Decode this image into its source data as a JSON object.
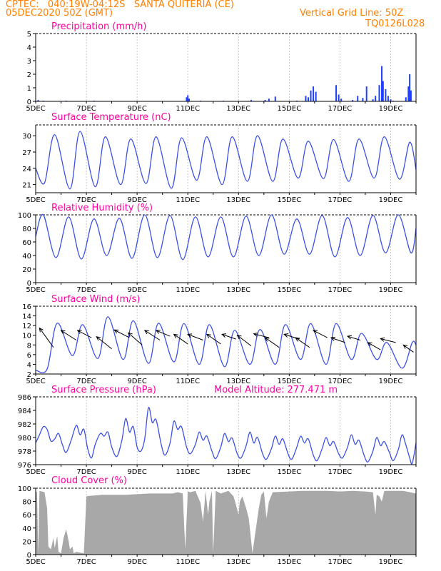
{
  "header": {
    "line1": "CPTEC:   040:19W-04:12S   SANTA QUITERIA (CE)",
    "line2": "05DEC2020 50Z (GMT)",
    "right1": "Vertical Grid Line: 50Z",
    "right2": "TQ0126L028"
  },
  "colors": {
    "header": "#ff7f00",
    "title": "#ff00a0",
    "line": "#3c50e6",
    "bars_precip": "#1f3fff",
    "cloud_fill": "#a8a8a8",
    "arrow": "#000000"
  },
  "x_axis": {
    "ticks": [
      "5DEC",
      "7DEC",
      "9DEC",
      "11DEC",
      "13DEC",
      "15DEC",
      "17DEC",
      "19DEC"
    ],
    "start_day": 5,
    "end_day": 20
  },
  "chart_data": [
    {
      "id": "precip",
      "type": "bar",
      "title": "Precipitation (mm/h)",
      "ylim": [
        0,
        5
      ],
      "yticks": [
        0,
        1,
        2,
        3,
        4,
        5
      ],
      "x": [
        5.1,
        5.3,
        6.2,
        7.3,
        10.95,
        11.0,
        11.05,
        11.5,
        12.4,
        13.5,
        14.05,
        14.2,
        14.45,
        15.3,
        15.65,
        15.75,
        15.85,
        15.95,
        16.05,
        16.85,
        16.95,
        17.05,
        17.5,
        17.7,
        17.9,
        18.05,
        18.3,
        18.4,
        18.55,
        18.65,
        18.7,
        18.8,
        18.9,
        19.0,
        19.1,
        19.6,
        19.7,
        19.75,
        19.8
      ],
      "values": [
        0.1,
        0.05,
        0.05,
        0.05,
        0.3,
        0.45,
        0.2,
        0.05,
        0.05,
        0.1,
        0.1,
        0.2,
        0.35,
        0.05,
        0.4,
        0.3,
        0.8,
        1.1,
        0.7,
        1.2,
        0.5,
        0.2,
        0.1,
        0.4,
        0.25,
        1.1,
        0.15,
        0.4,
        1.2,
        2.6,
        1.5,
        0.9,
        0.4,
        0.15,
        0.05,
        0.3,
        1.1,
        2.0,
        0.8
      ]
    },
    {
      "id": "temp",
      "type": "line",
      "title": "Surface Temperature (nC)",
      "ylim": [
        19.5,
        32
      ],
      "yticks": [
        21,
        24,
        27,
        30
      ],
      "maxima": [
        30.2,
        30.8,
        29.8,
        29.4,
        29.8,
        29.6,
        29.8,
        29.8,
        30.0,
        29.4,
        29.0,
        29.3,
        29.4,
        29.8,
        28.8
      ],
      "minima": [
        21.3,
        20.2,
        20.6,
        21.0,
        21.2,
        20.3,
        21.8,
        21.0,
        21.6,
        21.6,
        22.2,
        22.1,
        21.6,
        22.2,
        22.0
      ],
      "start": 24.0,
      "end": 23.8
    },
    {
      "id": "rh",
      "type": "line",
      "title": "Relative Humidity (%)",
      "ylim": [
        0,
        100
      ],
      "yticks": [
        0,
        20,
        40,
        60,
        80,
        100
      ],
      "maxima": [
        100,
        97,
        94,
        95,
        100,
        99,
        97,
        97,
        98,
        100,
        94,
        99,
        96,
        99,
        100
      ],
      "minima": [
        37,
        35,
        40,
        36,
        37,
        34,
        38,
        38,
        40,
        42,
        42,
        38,
        40,
        44,
        44
      ],
      "start": 68,
      "end": 80
    },
    {
      "id": "wind",
      "type": "line",
      "title": "Surface Wind (m/s)",
      "ylim": [
        2,
        16
      ],
      "yticks": [
        2,
        4,
        6,
        8,
        10,
        12,
        14,
        16
      ],
      "maxima": [
        12.5,
        12.2,
        13.8,
        13.0,
        12.5,
        12.4,
        12.2,
        11.0,
        11.2,
        12.2,
        12.4,
        12.4,
        10.4,
        8.5,
        8.5
      ],
      "minima": [
        3.0,
        5.8,
        5.2,
        5.0,
        4.2,
        4.5,
        4.0,
        3.5,
        4.0,
        4.0,
        5.0,
        4.0,
        5.0,
        5.0,
        3.2
      ],
      "start": 2.8,
      "end": 8.0,
      "arrows": [
        {
          "x": 5.7,
          "y": 7.5,
          "dx": -0.55,
          "dy": 4.0
        },
        {
          "x": 6.6,
          "y": 9.0,
          "dx": -0.6,
          "dy": 2.0
        },
        {
          "x": 7.2,
          "y": 9.5,
          "dx": -0.55,
          "dy": 1.5
        },
        {
          "x": 8.0,
          "y": 7.2,
          "dx": -0.6,
          "dy": 2.5
        },
        {
          "x": 8.7,
          "y": 9.5,
          "dx": -0.6,
          "dy": 1.6
        },
        {
          "x": 9.2,
          "y": 8.0,
          "dx": -0.55,
          "dy": 2.5
        },
        {
          "x": 9.9,
          "y": 9.0,
          "dx": -0.6,
          "dy": 2.0
        },
        {
          "x": 10.3,
          "y": 9.8,
          "dx": -0.55,
          "dy": 1.2
        },
        {
          "x": 11.0,
          "y": 8.2,
          "dx": -0.55,
          "dy": 2.0
        },
        {
          "x": 11.6,
          "y": 9.0,
          "dx": -0.6,
          "dy": 1.2
        },
        {
          "x": 12.3,
          "y": 8.2,
          "dx": -0.55,
          "dy": 2.0
        },
        {
          "x": 12.9,
          "y": 9.2,
          "dx": -0.55,
          "dy": 1.0
        },
        {
          "x": 13.5,
          "y": 7.8,
          "dx": -0.55,
          "dy": 2.2
        },
        {
          "x": 14.2,
          "y": 9.5,
          "dx": -0.6,
          "dy": 0.8
        },
        {
          "x": 14.6,
          "y": 7.5,
          "dx": -0.55,
          "dy": 2.0
        },
        {
          "x": 15.4,
          "y": 9.2,
          "dx": -0.6,
          "dy": 1.0
        },
        {
          "x": 15.8,
          "y": 7.5,
          "dx": -0.55,
          "dy": 2.0
        },
        {
          "x": 16.5,
          "y": 9.5,
          "dx": -0.55,
          "dy": 1.5
        },
        {
          "x": 17.2,
          "y": 8.5,
          "dx": -0.55,
          "dy": 1.0
        },
        {
          "x": 17.8,
          "y": 9.0,
          "dx": -0.5,
          "dy": 0.8
        },
        {
          "x": 18.6,
          "y": 7.0,
          "dx": -0.5,
          "dy": 1.5
        },
        {
          "x": 19.2,
          "y": 8.5,
          "dx": -0.6,
          "dy": 0.8
        },
        {
          "x": 19.9,
          "y": 6.5,
          "dx": -0.4,
          "dy": 1.5
        }
      ]
    },
    {
      "id": "pres",
      "type": "line",
      "title": "Surface Pressure (hPa)",
      "annotation": "Model Altitude: 277.471  m",
      "ylim": [
        976,
        986
      ],
      "yticks": [
        976,
        978,
        980,
        982,
        984,
        986
      ],
      "points": [
        [
          5.0,
          979.2
        ],
        [
          5.15,
          980.4
        ],
        [
          5.3,
          981.6
        ],
        [
          5.45,
          981.2
        ],
        [
          5.6,
          979.5
        ],
        [
          5.75,
          979.8
        ],
        [
          5.9,
          980.6
        ],
        [
          6.05,
          979.0
        ],
        [
          6.2,
          977.8
        ],
        [
          6.4,
          979.6
        ],
        [
          6.6,
          981.8
        ],
        [
          6.75,
          980.4
        ],
        [
          6.9,
          981.2
        ],
        [
          7.05,
          978.4
        ],
        [
          7.2,
          977.0
        ],
        [
          7.35,
          979.0
        ],
        [
          7.55,
          980.6
        ],
        [
          7.7,
          980.2
        ],
        [
          7.85,
          980.8
        ],
        [
          8.0,
          978.6
        ],
        [
          8.2,
          977.2
        ],
        [
          8.4,
          979.6
        ],
        [
          8.55,
          982.8
        ],
        [
          8.7,
          980.8
        ],
        [
          8.85,
          981.6
        ],
        [
          9.0,
          978.6
        ],
        [
          9.15,
          978.0
        ],
        [
          9.3,
          979.8
        ],
        [
          9.45,
          984.4
        ],
        [
          9.6,
          982.2
        ],
        [
          9.75,
          982.6
        ],
        [
          9.95,
          979.0
        ],
        [
          10.1,
          977.4
        ],
        [
          10.3,
          979.2
        ],
        [
          10.45,
          982.4
        ],
        [
          10.6,
          981.2
        ],
        [
          10.75,
          981.6
        ],
        [
          10.95,
          978.6
        ],
        [
          11.1,
          977.6
        ],
        [
          11.3,
          979.0
        ],
        [
          11.45,
          980.8
        ],
        [
          11.6,
          979.6
        ],
        [
          11.75,
          980.2
        ],
        [
          11.95,
          978.0
        ],
        [
          12.1,
          976.9
        ],
        [
          12.3,
          978.6
        ],
        [
          12.45,
          980.6
        ],
        [
          12.6,
          979.4
        ],
        [
          12.75,
          979.9
        ],
        [
          12.95,
          977.6
        ],
        [
          13.1,
          977.0
        ],
        [
          13.3,
          978.8
        ],
        [
          13.45,
          980.8
        ],
        [
          13.6,
          979.2
        ],
        [
          13.75,
          980.0
        ],
        [
          13.95,
          977.6
        ],
        [
          14.1,
          976.8
        ],
        [
          14.3,
          978.4
        ],
        [
          14.45,
          980.2
        ],
        [
          14.6,
          979.0
        ],
        [
          14.75,
          979.8
        ],
        [
          14.95,
          977.6
        ],
        [
          15.1,
          976.8
        ],
        [
          15.3,
          978.6
        ],
        [
          15.45,
          980.2
        ],
        [
          15.6,
          979.2
        ],
        [
          15.75,
          979.8
        ],
        [
          15.95,
          977.4
        ],
        [
          16.1,
          976.6
        ],
        [
          16.3,
          978.4
        ],
        [
          16.45,
          980.0
        ],
        [
          16.6,
          978.8
        ],
        [
          16.75,
          979.4
        ],
        [
          16.95,
          977.6
        ],
        [
          17.1,
          977.0
        ],
        [
          17.3,
          978.6
        ],
        [
          17.45,
          980.4
        ],
        [
          17.6,
          979.0
        ],
        [
          17.75,
          979.6
        ],
        [
          17.95,
          977.4
        ],
        [
          18.1,
          976.4
        ],
        [
          18.3,
          978.0
        ],
        [
          18.45,
          980.0
        ],
        [
          18.6,
          978.8
        ],
        [
          18.75,
          979.4
        ],
        [
          18.95,
          977.8
        ],
        [
          19.1,
          976.6
        ],
        [
          19.3,
          978.2
        ],
        [
          19.45,
          980.4
        ],
        [
          19.6,
          978.9
        ],
        [
          19.75,
          977.0
        ],
        [
          19.85,
          976.2
        ],
        [
          20.0,
          979.2
        ]
      ]
    },
    {
      "id": "cloud",
      "type": "area",
      "title": "Cloud Cover (%)",
      "ylim": [
        0,
        100
      ],
      "yticks": [
        0,
        20,
        40,
        60,
        80,
        100
      ],
      "points": [
        [
          5.0,
          96
        ],
        [
          5.05,
          94
        ],
        [
          5.1,
          2
        ],
        [
          5.15,
          96
        ],
        [
          5.35,
          94
        ],
        [
          5.45,
          70
        ],
        [
          5.5,
          12
        ],
        [
          5.6,
          8
        ],
        [
          5.7,
          25
        ],
        [
          5.75,
          10
        ],
        [
          5.85,
          28
        ],
        [
          5.9,
          4
        ],
        [
          6.0,
          2
        ],
        [
          6.1,
          25
        ],
        [
          6.2,
          38
        ],
        [
          6.25,
          30
        ],
        [
          6.3,
          20
        ],
        [
          6.35,
          8
        ],
        [
          6.45,
          12
        ],
        [
          6.5,
          2
        ],
        [
          6.6,
          4
        ],
        [
          6.75,
          3
        ],
        [
          6.9,
          2
        ],
        [
          7.0,
          88
        ],
        [
          7.3,
          89
        ],
        [
          7.6,
          90
        ],
        [
          8.0,
          90
        ],
        [
          8.5,
          90
        ],
        [
          9.0,
          91
        ],
        [
          9.5,
          92
        ],
        [
          10.0,
          92
        ],
        [
          10.4,
          92
        ],
        [
          10.6,
          94
        ],
        [
          10.8,
          92
        ],
        [
          10.9,
          8
        ],
        [
          11.0,
          95
        ],
        [
          11.1,
          94
        ],
        [
          11.3,
          96
        ],
        [
          11.5,
          78
        ],
        [
          11.6,
          50
        ],
        [
          11.7,
          96
        ],
        [
          11.8,
          60
        ],
        [
          11.85,
          80
        ],
        [
          11.95,
          96
        ],
        [
          12.0,
          2
        ],
        [
          12.1,
          96
        ],
        [
          12.3,
          92
        ],
        [
          12.6,
          96
        ],
        [
          12.8,
          88
        ],
        [
          12.9,
          75
        ],
        [
          13.0,
          60
        ],
        [
          13.05,
          80
        ],
        [
          13.15,
          88
        ],
        [
          13.3,
          70
        ],
        [
          13.4,
          55
        ],
        [
          13.45,
          38
        ],
        [
          13.55,
          2
        ],
        [
          13.65,
          30
        ],
        [
          13.8,
          70
        ],
        [
          13.9,
          90
        ],
        [
          14.0,
          95
        ],
        [
          14.1,
          55
        ],
        [
          14.2,
          80
        ],
        [
          14.35,
          94
        ],
        [
          15.0,
          95
        ],
        [
          15.5,
          96
        ],
        [
          16.0,
          96
        ],
        [
          16.5,
          96
        ],
        [
          17.0,
          95
        ],
        [
          17.5,
          96
        ],
        [
          18.0,
          95
        ],
        [
          18.3,
          94
        ],
        [
          18.4,
          60
        ],
        [
          18.45,
          90
        ],
        [
          18.55,
          88
        ],
        [
          18.65,
          80
        ],
        [
          18.75,
          96
        ],
        [
          19.0,
          96
        ],
        [
          19.5,
          96
        ],
        [
          20.0,
          92
        ]
      ]
    }
  ]
}
